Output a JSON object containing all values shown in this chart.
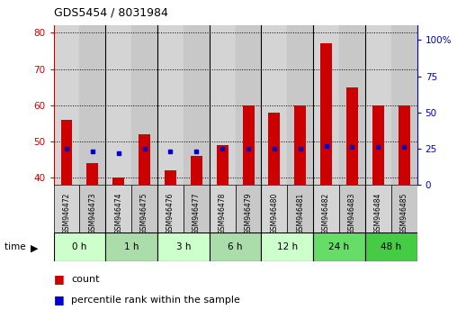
{
  "title": "GDS5454 / 8031984",
  "samples": [
    "GSM946472",
    "GSM946473",
    "GSM946474",
    "GSM946475",
    "GSM946476",
    "GSM946477",
    "GSM946478",
    "GSM946479",
    "GSM946480",
    "GSM946481",
    "GSM946482",
    "GSM946483",
    "GSM946484",
    "GSM946485"
  ],
  "count_values": [
    56,
    44,
    40,
    52,
    42,
    46,
    49,
    60,
    58,
    60,
    77,
    65,
    60,
    60
  ],
  "percentile_values": [
    25,
    23,
    22,
    25,
    23,
    23,
    25,
    25,
    25,
    25,
    27,
    26,
    26,
    26
  ],
  "time_groups": [
    {
      "label": "0 h",
      "start": 0,
      "end": 2,
      "color": "#ccffcc"
    },
    {
      "label": "1 h",
      "start": 2,
      "end": 4,
      "color": "#aaddaa"
    },
    {
      "label": "3 h",
      "start": 4,
      "end": 6,
      "color": "#ccffcc"
    },
    {
      "label": "6 h",
      "start": 6,
      "end": 8,
      "color": "#aaddaa"
    },
    {
      "label": "12 h",
      "start": 8,
      "end": 10,
      "color": "#ccffcc"
    },
    {
      "label": "24 h",
      "start": 10,
      "end": 12,
      "color": "#66dd66"
    },
    {
      "label": "48 h",
      "start": 12,
      "end": 14,
      "color": "#44cc44"
    }
  ],
  "ylim_left": [
    38,
    82
  ],
  "ylim_right": [
    0,
    110
  ],
  "yticks_left": [
    40,
    50,
    60,
    70,
    80
  ],
  "yticks_right": [
    0,
    25,
    50,
    75,
    100
  ],
  "bar_color": "#cc0000",
  "dot_color": "#0000cc",
  "col_colors": [
    "#d4d4d4",
    "#c8c8c8"
  ]
}
